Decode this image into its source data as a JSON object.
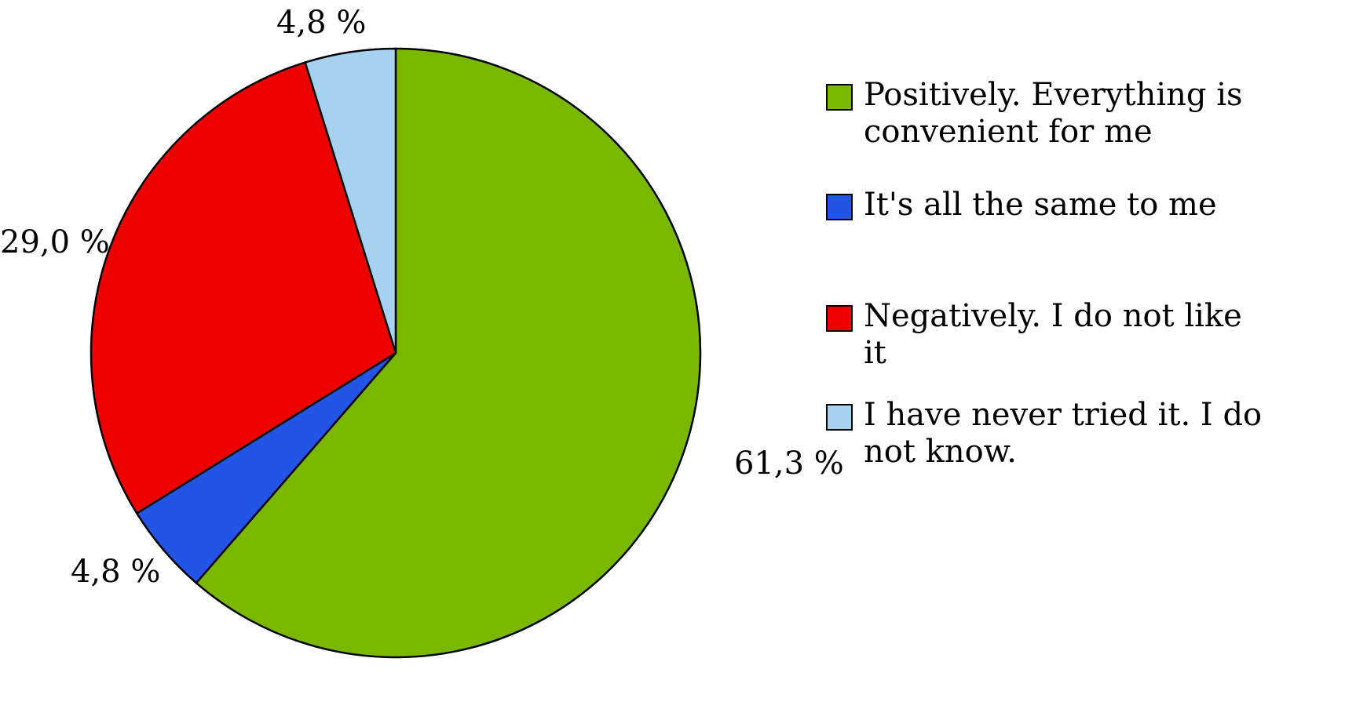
{
  "chart_data": {
    "type": "pie",
    "title": "",
    "start_angle_deg": -90,
    "direction": "clockwise",
    "legend_position": "right",
    "outline_color": "#000000",
    "background": "#ffffff",
    "slices": [
      {
        "label": "Positively. Everything is convenient for me",
        "value": 61.3,
        "value_label": "61,3 %",
        "color": "#7ab800"
      },
      {
        "label": "It's all the same to me",
        "value": 4.8,
        "value_label": "4,8 %",
        "color": "#2255e6"
      },
      {
        "label": "Negatively. I do not like it",
        "value": 29.0,
        "value_label": "29,0 %",
        "color": "#ee0000"
      },
      {
        "label": "I have never tried it. I do not know.",
        "value": 4.8,
        "value_label": "4,8 %",
        "color": "#a6d2f0"
      }
    ]
  }
}
